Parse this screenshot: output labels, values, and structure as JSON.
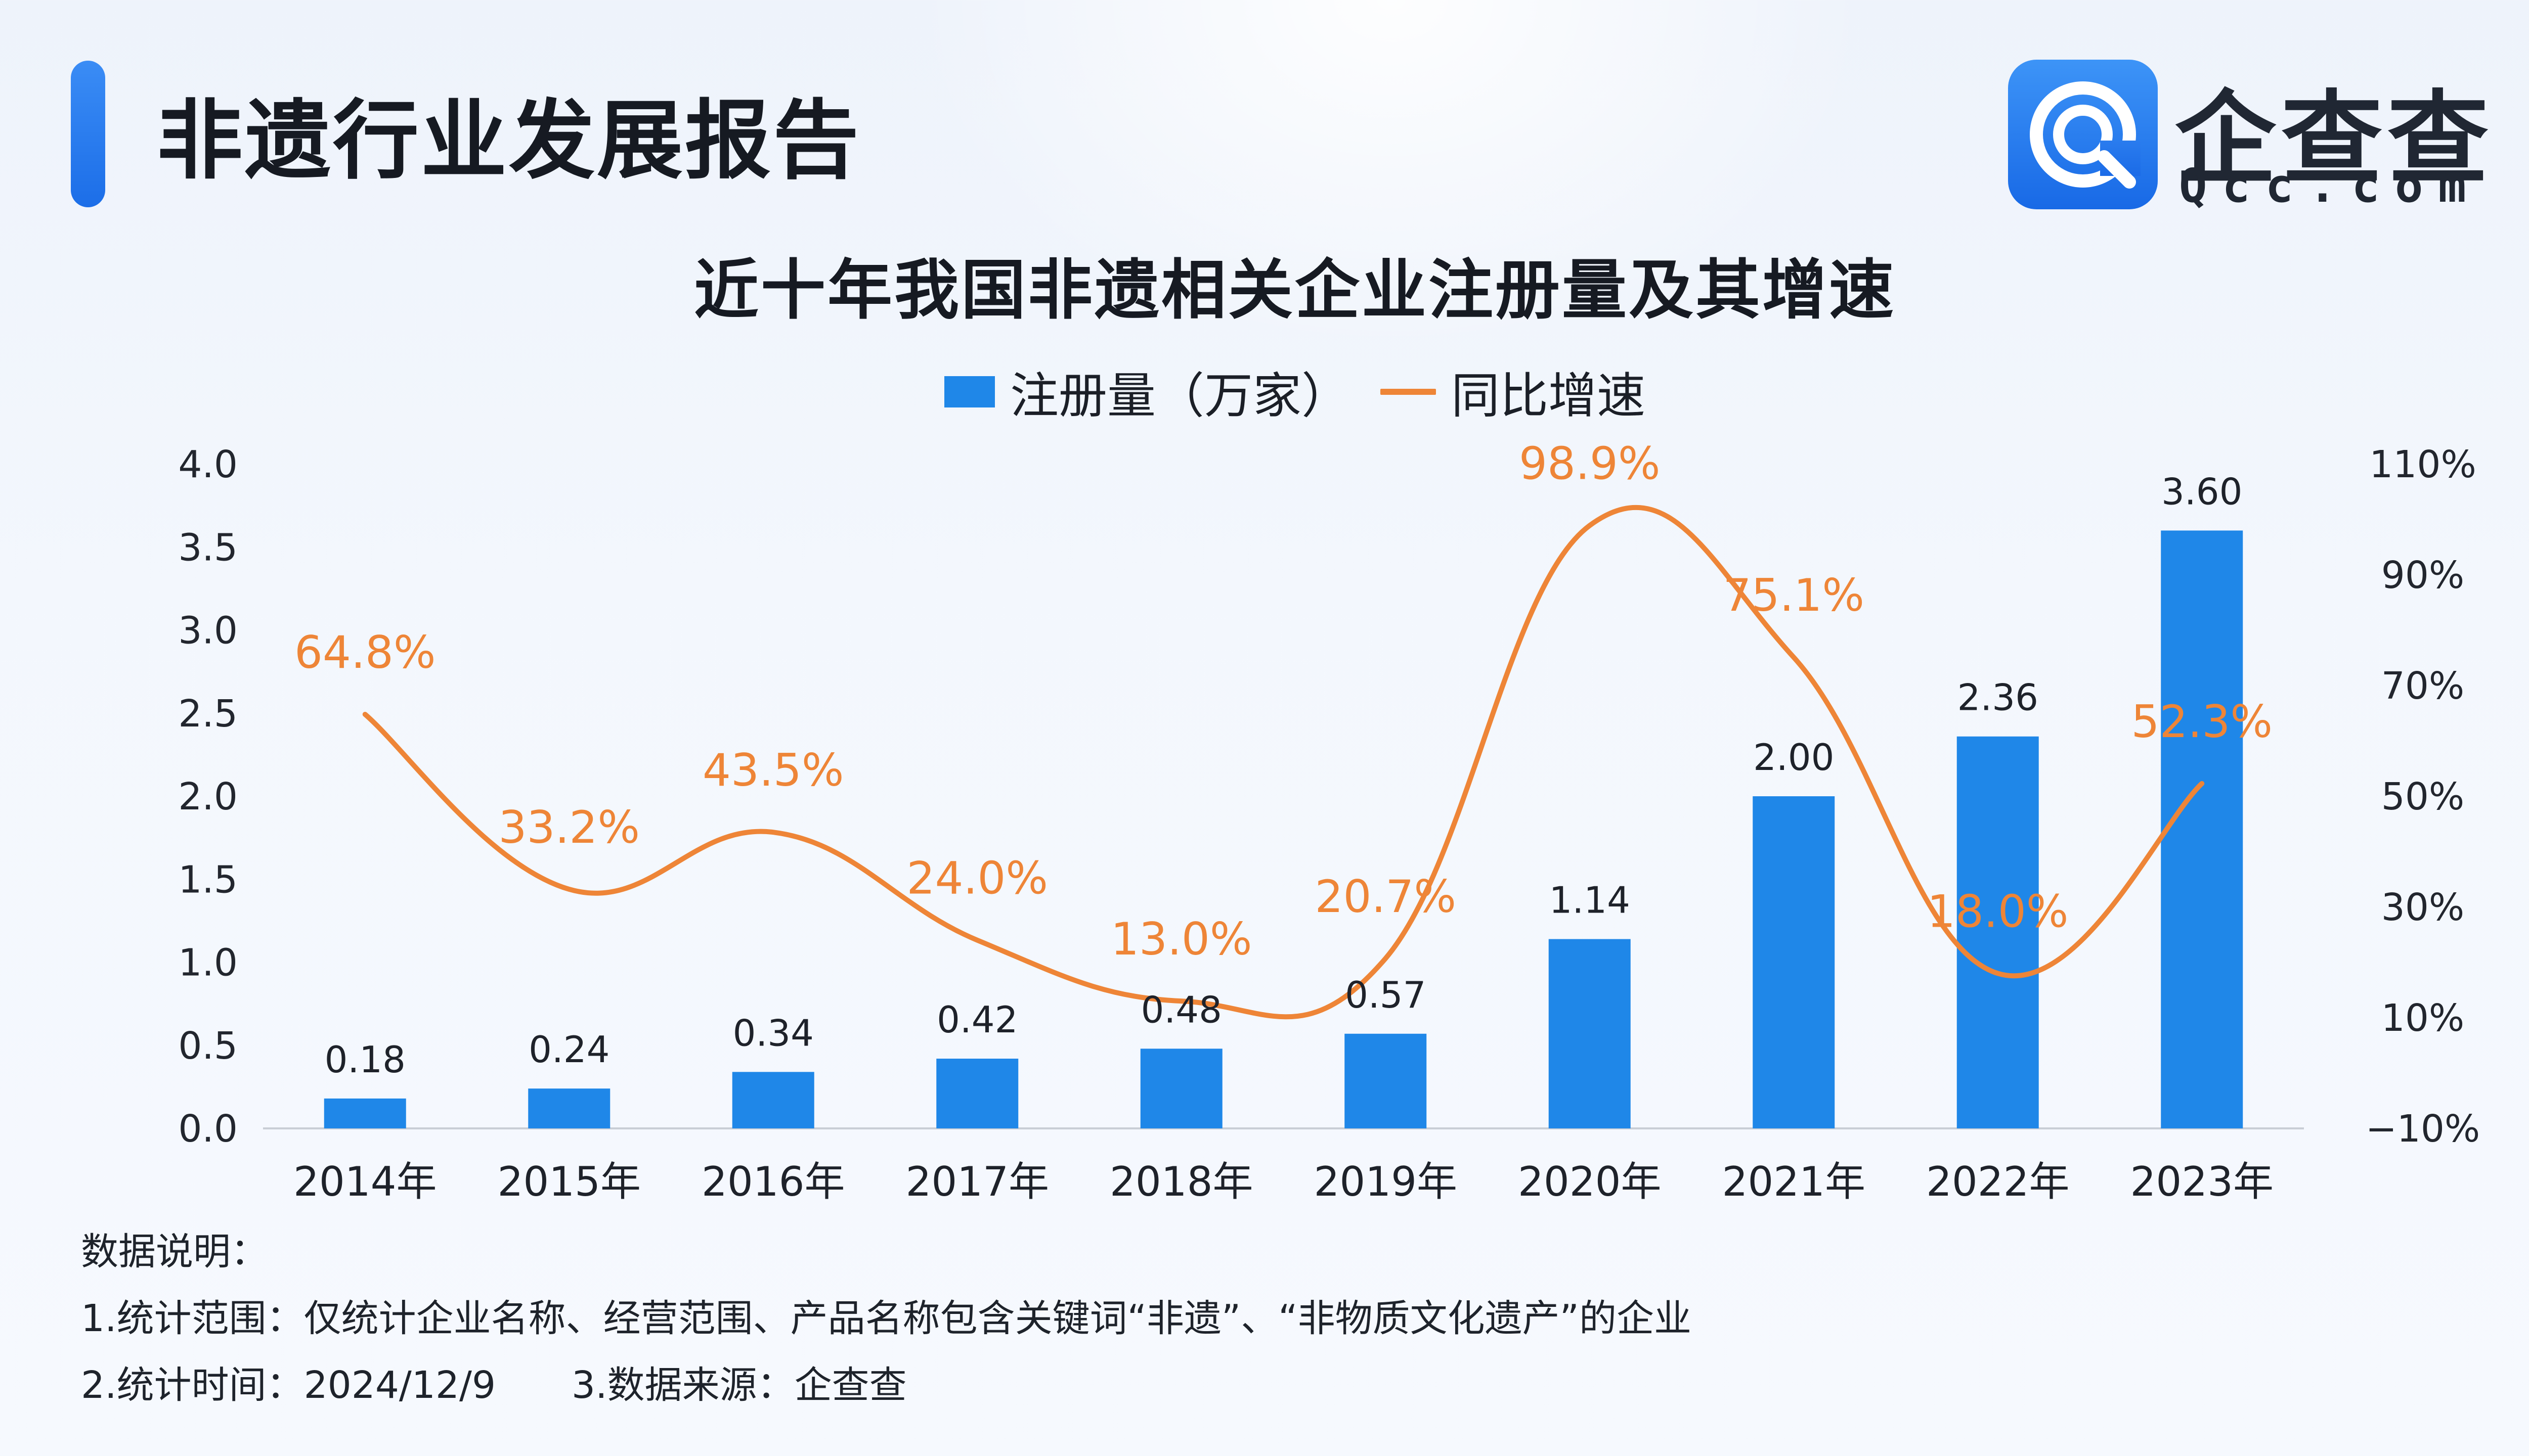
{
  "header": {
    "title": "非遗行业发展报告"
  },
  "logo": {
    "text": "企查查",
    "subtext": "Qcc.com"
  },
  "chart_data": {
    "type": "bar",
    "title": "近十年我国非遗相关企业注册量及其增速",
    "categories": [
      "2014年",
      "2015年",
      "2016年",
      "2017年",
      "2018年",
      "2019年",
      "2020年",
      "2021年",
      "2022年",
      "2023年"
    ],
    "series": [
      {
        "name": "注册量（万家）",
        "type": "bar",
        "axis": "left",
        "color": "#1f87e8",
        "values": [
          0.18,
          0.24,
          0.34,
          0.42,
          0.48,
          0.57,
          1.14,
          2.0,
          2.36,
          3.6
        ],
        "labels": [
          "0.18",
          "0.24",
          "0.34",
          "0.42",
          "0.48",
          "0.57",
          "1.14",
          "2.00",
          "2.36",
          "3.60"
        ]
      },
      {
        "name": "同比增速",
        "type": "line",
        "smooth": true,
        "axis": "right",
        "color": "#ee8537",
        "values": [
          64.8,
          33.2,
          43.5,
          24.0,
          13.0,
          20.7,
          98.9,
          75.1,
          18.0,
          52.3
        ],
        "labels": [
          "64.8%",
          "33.2%",
          "43.5%",
          "24.0%",
          "13.0%",
          "20.7%",
          "98.9%",
          "75.1%",
          "18.0%",
          "52.3%"
        ]
      }
    ],
    "y_left": {
      "min": 0,
      "max": 4.0,
      "ticks": [
        "0.0",
        "0.5",
        "1.0",
        "1.5",
        "2.0",
        "2.5",
        "3.0",
        "3.5",
        "4.0"
      ]
    },
    "y_right": {
      "min": -10,
      "max": 110,
      "ticks": [
        "−10%",
        "10%",
        "30%",
        "50%",
        "70%",
        "90%",
        "110%"
      ]
    },
    "grid": false,
    "legend_position": "top-center"
  },
  "notes": {
    "heading": "数据说明：",
    "scope": "1.统计范围：仅统计企业名称、经营范围、产品名称包含关键词“非遗”、“非物质文化遗产”的企业",
    "time": "2.统计时间：2024/12/9",
    "source": "3.数据来源：企查查"
  }
}
